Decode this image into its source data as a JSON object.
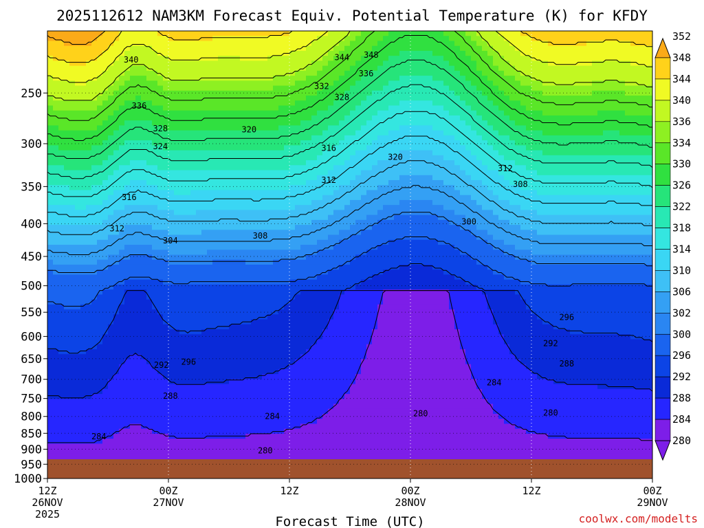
{
  "page": {
    "title": "2025112612 NAM3KM Forecast Equiv. Potential Temperature (K) for KFDY",
    "credit": "coolwx.com/modelts"
  },
  "chart_data": {
    "type": "heatmap",
    "title": "2025112612 NAM3KM Forecast Equiv. Potential Temperature (K) for KFDY",
    "xlabel": "Forecast Time (UTC)",
    "ylabel": "",
    "x_ticks": [
      {
        "hour": 0,
        "line1": "12Z",
        "line2": "26NOV",
        "line3": "2025"
      },
      {
        "hour": 12,
        "line1": "00Z",
        "line2": "27NOV",
        "line3": ""
      },
      {
        "hour": 24,
        "line1": "12Z",
        "line2": "",
        "line3": ""
      },
      {
        "hour": 36,
        "line1": "00Z",
        "line2": "28NOV",
        "line3": ""
      },
      {
        "hour": 48,
        "line1": "12Z",
        "line2": "",
        "line3": ""
      },
      {
        "hour": 60,
        "line1": "00Z",
        "line2": "29NOV",
        "line3": ""
      }
    ],
    "xlim": [
      0,
      60
    ],
    "y_ticks": [
      250,
      300,
      350,
      400,
      450,
      500,
      550,
      600,
      650,
      700,
      750,
      800,
      850,
      900,
      950,
      1000
    ],
    "ylim": [
      1000,
      200
    ],
    "y_scale": "log",
    "grid": true,
    "colorbar": {
      "levels": [
        280,
        284,
        288,
        292,
        296,
        300,
        302,
        306,
        310,
        314,
        318,
        322,
        326,
        330,
        334,
        336,
        340,
        344,
        348,
        352
      ],
      "colors": [
        "#7d1ee8",
        "#2626ff",
        "#0a2ad8",
        "#0c44e6",
        "#1a64ef",
        "#2a86f2",
        "#34a0f4",
        "#3ec0f6",
        "#3ad6f4",
        "#34e6e0",
        "#28e8b4",
        "#26e47a",
        "#30e040",
        "#5ae628",
        "#8ef022",
        "#c2f822",
        "#f0fa24",
        "#ffd21a",
        "#fbaa18"
      ],
      "extend": "both"
    },
    "contour_labels": [
      {
        "hour": 8.3,
        "p": 222,
        "label": "340"
      },
      {
        "hour": 29.2,
        "p": 220,
        "label": "344"
      },
      {
        "hour": 32.1,
        "p": 218,
        "label": "348"
      },
      {
        "hour": 31.6,
        "p": 233,
        "label": "336"
      },
      {
        "hour": 27.2,
        "p": 244,
        "label": "332"
      },
      {
        "hour": 29.2,
        "p": 254,
        "label": "328"
      },
      {
        "hour": 9.1,
        "p": 262,
        "label": "336"
      },
      {
        "hour": 11.2,
        "p": 284,
        "label": "328"
      },
      {
        "hour": 20.0,
        "p": 285,
        "label": "320"
      },
      {
        "hour": 11.2,
        "p": 303,
        "label": "324"
      },
      {
        "hour": 27.9,
        "p": 305,
        "label": "316"
      },
      {
        "hour": 34.5,
        "p": 315,
        "label": "320"
      },
      {
        "hour": 45.4,
        "p": 328,
        "label": "312"
      },
      {
        "hour": 27.9,
        "p": 342,
        "label": "312"
      },
      {
        "hour": 46.9,
        "p": 347,
        "label": "308"
      },
      {
        "hour": 8.1,
        "p": 364,
        "label": "316"
      },
      {
        "hour": 41.8,
        "p": 397,
        "label": "300"
      },
      {
        "hour": 6.9,
        "p": 407,
        "label": "312"
      },
      {
        "hour": 21.1,
        "p": 418,
        "label": "308"
      },
      {
        "hour": 12.2,
        "p": 425,
        "label": "304"
      },
      {
        "hour": 51.5,
        "p": 560,
        "label": "296"
      },
      {
        "hour": 49.9,
        "p": 615,
        "label": "292"
      },
      {
        "hour": 51.5,
        "p": 662,
        "label": "288"
      },
      {
        "hour": 14.0,
        "p": 658,
        "label": "296"
      },
      {
        "hour": 11.3,
        "p": 665,
        "label": "292"
      },
      {
        "hour": 44.3,
        "p": 708,
        "label": "284"
      },
      {
        "hour": 12.2,
        "p": 743,
        "label": "288"
      },
      {
        "hour": 49.9,
        "p": 790,
        "label": "280"
      },
      {
        "hour": 37.0,
        "p": 792,
        "label": "280"
      },
      {
        "hour": 22.3,
        "p": 800,
        "label": "284"
      },
      {
        "hour": 5.1,
        "p": 860,
        "label": "284"
      },
      {
        "hour": 21.6,
        "p": 905,
        "label": "280"
      }
    ]
  }
}
